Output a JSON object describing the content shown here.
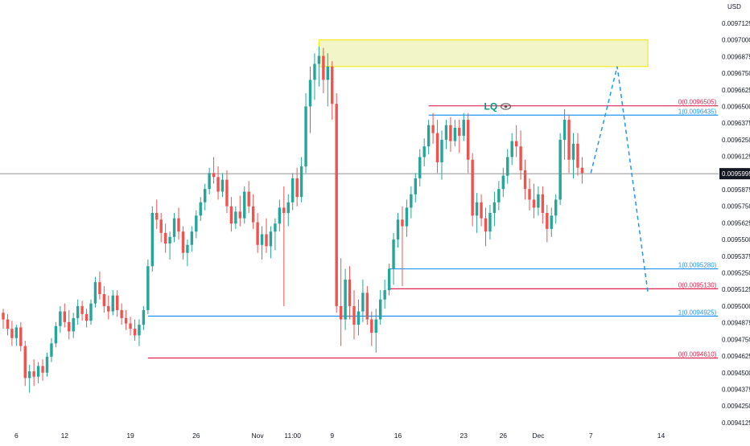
{
  "chart_data": {
    "type": "candlestick",
    "currency": "USD",
    "y_axis": {
      "min": 0.00941,
      "max": 0.00973,
      "ticks": [
        "0.0097125",
        "0.0097000",
        "0.0096875",
        "0.0096750",
        "0.0096625",
        "0.0096500",
        "0.0096375",
        "0.0096250",
        "0.0096125",
        "0.0096000",
        "0.0095875",
        "0.0095750",
        "0.0095625",
        "0.0095500",
        "0.0095375",
        "0.0095250",
        "0.0095125",
        "0.0095000",
        "0.0094875",
        "0.0094750",
        "0.0094625",
        "0.0094500",
        "0.0094375",
        "0.0094250",
        "0.0094125"
      ]
    },
    "x_axis": {
      "labels": [
        {
          "label": "6",
          "at": 3
        },
        {
          "label": "12",
          "at": 14
        },
        {
          "label": "19",
          "at": 29
        },
        {
          "label": "26",
          "at": 44
        },
        {
          "label": "Nov",
          "at": 58
        },
        {
          "label": "11:00",
          "at": 66
        },
        {
          "label": "9",
          "at": 75
        },
        {
          "label": "16",
          "at": 90
        },
        {
          "label": "23",
          "at": 105
        },
        {
          "label": "26",
          "at": 114
        },
        {
          "label": "Dec",
          "at": 122
        },
        {
          "label": "7",
          "at": 134
        },
        {
          "label": "14",
          "at": 150
        }
      ]
    },
    "current_price": {
      "value": 0.0095995,
      "label": "0.0095995"
    },
    "levels": [
      {
        "label": "0(0.0096505)",
        "value": 0.0096505,
        "x_start": 97,
        "x_end": 163,
        "color": "#e0234e"
      },
      {
        "label": "1(0.0096435)",
        "value": 0.0096435,
        "x_start": 97,
        "x_end": 163,
        "color": "#2196f3"
      },
      {
        "label": "1(0.0095280)",
        "value": 0.009528,
        "x_start": 88,
        "x_end": 163,
        "color": "#2196f3"
      },
      {
        "label": "0(0.0095130)",
        "value": 0.009513,
        "x_start": 88,
        "x_end": 163,
        "color": "#e0234e"
      },
      {
        "label": "1(0.0094925)",
        "value": 0.0094925,
        "x_start": 33,
        "x_end": 163,
        "color": "#2196f3"
      },
      {
        "label": "0(0.0094610)",
        "value": 0.009461,
        "x_start": 33,
        "x_end": 163,
        "color": "#e0234e"
      }
    ],
    "zone": {
      "x_start": 72,
      "x_end": 147,
      "y_top": 0.0097,
      "y_bottom": 0.00968
    },
    "annotation": {
      "text": "LQ",
      "at_x": 110,
      "at_y": 0.00965
    },
    "projection": [
      {
        "x": 134,
        "y": 0.0096
      },
      {
        "x": 140,
        "y": 0.00968
      },
      {
        "x": 147,
        "y": 0.00951
      }
    ],
    "candles": [
      [
        0.009495,
        0.009498,
        0.009483,
        0.00949
      ],
      [
        0.00949,
        0.009494,
        0.009478,
        0.009483
      ],
      [
        0.009483,
        0.009489,
        0.00947,
        0.009476
      ],
      [
        0.009476,
        0.009486,
        0.00947,
        0.009484
      ],
      [
        0.009484,
        0.009488,
        0.009466,
        0.00947
      ],
      [
        0.00947,
        0.009474,
        0.00944,
        0.009446
      ],
      [
        0.009446,
        0.009456,
        0.009435,
        0.009451
      ],
      [
        0.009451,
        0.00946,
        0.00944,
        0.009447
      ],
      [
        0.009447,
        0.009458,
        0.009442,
        0.009455
      ],
      [
        0.009455,
        0.00946,
        0.009444,
        0.00945
      ],
      [
        0.00945,
        0.009465,
        0.009447,
        0.009462
      ],
      [
        0.009462,
        0.009476,
        0.009458,
        0.009472
      ],
      [
        0.009472,
        0.009488,
        0.009469,
        0.009485
      ],
      [
        0.009485,
        0.0095,
        0.00948,
        0.009496
      ],
      [
        0.009496,
        0.009502,
        0.009484,
        0.009488
      ],
      [
        0.009488,
        0.009497,
        0.009475,
        0.009481
      ],
      [
        0.009481,
        0.009495,
        0.009476,
        0.009491
      ],
      [
        0.009491,
        0.009505,
        0.009486,
        0.0095
      ],
      [
        0.0095,
        0.009504,
        0.009489,
        0.009494
      ],
      [
        0.009494,
        0.009498,
        0.009484,
        0.009489
      ],
      [
        0.009489,
        0.009505,
        0.009486,
        0.009502
      ],
      [
        0.009502,
        0.009522,
        0.009499,
        0.009518
      ],
      [
        0.009518,
        0.009526,
        0.009505,
        0.009509
      ],
      [
        0.009509,
        0.009515,
        0.009495,
        0.0095
      ],
      [
        0.0095,
        0.009508,
        0.00949,
        0.009496
      ],
      [
        0.009496,
        0.009512,
        0.009493,
        0.009508
      ],
      [
        0.009508,
        0.009512,
        0.009492,
        0.009497
      ],
      [
        0.009497,
        0.009502,
        0.009486,
        0.009491
      ],
      [
        0.009491,
        0.009497,
        0.009482,
        0.009487
      ],
      [
        0.009487,
        0.009492,
        0.009478,
        0.009483
      ],
      [
        0.009483,
        0.00949,
        0.009474,
        0.009478
      ],
      [
        0.009478,
        0.00949,
        0.00947,
        0.009486
      ],
      [
        0.009486,
        0.0095,
        0.009482,
        0.009497
      ],
      [
        0.009497,
        0.009535,
        0.009494,
        0.00953
      ],
      [
        0.00953,
        0.009575,
        0.009526,
        0.00957
      ],
      [
        0.00957,
        0.00958,
        0.009558,
        0.009565
      ],
      [
        0.009565,
        0.00957,
        0.009548,
        0.009555
      ],
      [
        0.009555,
        0.009562,
        0.00954,
        0.009547
      ],
      [
        0.009547,
        0.009556,
        0.009535,
        0.009552
      ],
      [
        0.009552,
        0.00957,
        0.009548,
        0.009566
      ],
      [
        0.009566,
        0.009574,
        0.00955,
        0.009556
      ],
      [
        0.009556,
        0.00956,
        0.009535,
        0.00954
      ],
      [
        0.00954,
        0.00955,
        0.00953,
        0.009546
      ],
      [
        0.009546,
        0.00956,
        0.009541,
        0.009556
      ],
      [
        0.009556,
        0.009572,
        0.009551,
        0.009568
      ],
      [
        0.009568,
        0.009582,
        0.009564,
        0.009578
      ],
      [
        0.009578,
        0.009592,
        0.009572,
        0.009588
      ],
      [
        0.009588,
        0.009604,
        0.009584,
        0.0096
      ],
      [
        0.0096,
        0.009612,
        0.009592,
        0.009597
      ],
      [
        0.009597,
        0.009605,
        0.00958,
        0.009586
      ],
      [
        0.009586,
        0.0096,
        0.009582,
        0.009595
      ],
      [
        0.009595,
        0.009602,
        0.00957,
        0.009575
      ],
      [
        0.009575,
        0.009582,
        0.009556,
        0.009562
      ],
      [
        0.009562,
        0.009575,
        0.009558,
        0.009571
      ],
      [
        0.009571,
        0.009583,
        0.00956,
        0.009566
      ],
      [
        0.009566,
        0.00959,
        0.009562,
        0.009586
      ],
      [
        0.009586,
        0.009594,
        0.00957,
        0.009575
      ],
      [
        0.009575,
        0.009584,
        0.009558,
        0.009563
      ],
      [
        0.009563,
        0.00957,
        0.00954,
        0.009546
      ],
      [
        0.009546,
        0.00956,
        0.009535,
        0.009554
      ],
      [
        0.009554,
        0.009566,
        0.00954,
        0.009545
      ],
      [
        0.009545,
        0.00956,
        0.009536,
        0.009556
      ],
      [
        0.009556,
        0.009566,
        0.009542,
        0.009562
      ],
      [
        0.009562,
        0.00958,
        0.009556,
        0.009574
      ],
      [
        0.009574,
        0.00959,
        0.0095,
        0.00957
      ],
      [
        0.00957,
        0.009584,
        0.00956,
        0.009578
      ],
      [
        0.009578,
        0.0096,
        0.009572,
        0.009596
      ],
      [
        0.009596,
        0.009604,
        0.009575,
        0.009582
      ],
      [
        0.009582,
        0.009612,
        0.009578,
        0.009605
      ],
      [
        0.009605,
        0.00966,
        0.0096,
        0.00965
      ],
      [
        0.00965,
        0.00968,
        0.00963,
        0.00967
      ],
      [
        0.00967,
        0.00969,
        0.009655,
        0.009682
      ],
      [
        0.009682,
        0.009695,
        0.009665,
        0.009688
      ],
      [
        0.009688,
        0.009694,
        0.00966,
        0.00967
      ],
      [
        0.00967,
        0.00969,
        0.00965,
        0.00968
      ],
      [
        0.00968,
        0.009684,
        0.00964,
        0.009652
      ],
      [
        0.009652,
        0.00966,
        0.009495,
        0.0095
      ],
      [
        0.0095,
        0.009536,
        0.00947,
        0.00949
      ],
      [
        0.00949,
        0.009528,
        0.009482,
        0.00952
      ],
      [
        0.00952,
        0.00953,
        0.00949,
        0.0095
      ],
      [
        0.0095,
        0.009512,
        0.009475,
        0.009486
      ],
      [
        0.009486,
        0.009505,
        0.009478,
        0.009496
      ],
      [
        0.009496,
        0.00952,
        0.009488,
        0.00951
      ],
      [
        0.00951,
        0.009515,
        0.009486,
        0.00949
      ],
      [
        0.00949,
        0.009496,
        0.00947,
        0.00948
      ],
      [
        0.00948,
        0.009498,
        0.009465,
        0.00949
      ],
      [
        0.00949,
        0.009512,
        0.009486,
        0.009505
      ],
      [
        0.009505,
        0.00952,
        0.009498,
        0.009512
      ],
      [
        0.009512,
        0.009532,
        0.009508,
        0.009528
      ],
      [
        0.009528,
        0.009555,
        0.009516,
        0.00955
      ],
      [
        0.00955,
        0.00957,
        0.009544,
        0.009565
      ],
      [
        0.009565,
        0.009575,
        0.009515,
        0.00956
      ],
      [
        0.00956,
        0.00958,
        0.009552,
        0.009574
      ],
      [
        0.009574,
        0.00959,
        0.009566,
        0.009584
      ],
      [
        0.009584,
        0.0096,
        0.009578,
        0.009596
      ],
      [
        0.009596,
        0.009618,
        0.00959,
        0.009612
      ],
      [
        0.009612,
        0.009626,
        0.009605,
        0.00962
      ],
      [
        0.00962,
        0.00964,
        0.009614,
        0.009636
      ],
      [
        0.009636,
        0.009645,
        0.009622,
        0.00963
      ],
      [
        0.00963,
        0.00964,
        0.0096,
        0.009608
      ],
      [
        0.009608,
        0.009632,
        0.009595,
        0.009625
      ],
      [
        0.009625,
        0.00964,
        0.009618,
        0.009636
      ],
      [
        0.009636,
        0.009642,
        0.009616,
        0.009624
      ],
      [
        0.009624,
        0.00964,
        0.00962,
        0.009634
      ],
      [
        0.009634,
        0.00964,
        0.009615,
        0.009628
      ],
      [
        0.009628,
        0.009645,
        0.009624,
        0.00964
      ],
      [
        0.00964,
        0.009645,
        0.0096,
        0.00961
      ],
      [
        0.00961,
        0.009615,
        0.00956,
        0.009568
      ],
      [
        0.009568,
        0.009585,
        0.009555,
        0.009578
      ],
      [
        0.009578,
        0.009584,
        0.00956,
        0.009566
      ],
      [
        0.009566,
        0.009574,
        0.009545,
        0.009556
      ],
      [
        0.009556,
        0.009576,
        0.00955,
        0.00957
      ],
      [
        0.00957,
        0.009586,
        0.00956,
        0.009578
      ],
      [
        0.009578,
        0.009594,
        0.009572,
        0.009588
      ],
      [
        0.009588,
        0.009604,
        0.009582,
        0.009598
      ],
      [
        0.009598,
        0.009618,
        0.009592,
        0.009612
      ],
      [
        0.009612,
        0.00963,
        0.009606,
        0.009624
      ],
      [
        0.009624,
        0.009636,
        0.009612,
        0.00962
      ],
      [
        0.00962,
        0.009632,
        0.009595,
        0.009602
      ],
      [
        0.009602,
        0.00961,
        0.00958,
        0.009588
      ],
      [
        0.009588,
        0.009596,
        0.009572,
        0.00958
      ],
      [
        0.00958,
        0.009592,
        0.009566,
        0.009574
      ],
      [
        0.009574,
        0.00959,
        0.009568,
        0.009584
      ],
      [
        0.009584,
        0.00959,
        0.009562,
        0.00957
      ],
      [
        0.00957,
        0.009576,
        0.009548,
        0.009558
      ],
      [
        0.009558,
        0.009574,
        0.009552,
        0.009568
      ],
      [
        0.009568,
        0.009584,
        0.009562,
        0.00958
      ],
      [
        0.00958,
        0.00963,
        0.009576,
        0.009625
      ],
      [
        0.009625,
        0.009648,
        0.00961,
        0.00964
      ],
      [
        0.00964,
        0.009644,
        0.0096,
        0.00961
      ],
      [
        0.00961,
        0.00963,
        0.009596,
        0.009622
      ],
      [
        0.009622,
        0.00963,
        0.009598,
        0.009604
      ],
      [
        0.009604,
        0.009612,
        0.009592,
        0.0096
      ]
    ]
  }
}
